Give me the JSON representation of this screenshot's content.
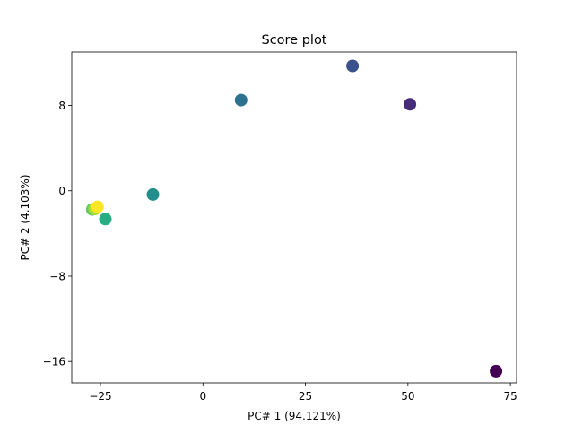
{
  "chart_data": {
    "type": "scatter",
    "title": "Score plot",
    "xlabel": "PC# 1 (94.121%)",
    "ylabel": "PC# 2 (4.103%)",
    "xlim": [
      -32,
      76.5
    ],
    "ylim": [
      -18.0,
      13.0
    ],
    "xticks": [
      -25,
      0,
      25,
      50,
      75
    ],
    "xtick_labels": [
      "−25",
      "0",
      "25",
      "50",
      "75"
    ],
    "yticks": [
      8,
      0,
      -8,
      -16
    ],
    "ytick_labels": [
      "8",
      "0",
      "−8",
      "−16"
    ],
    "grid": false,
    "legend": "none",
    "colormap": "viridis",
    "points": [
      {
        "x": 71.5,
        "y": -16.9,
        "color": "#440154"
      },
      {
        "x": 50.5,
        "y": 8.1,
        "color": "#472c7a"
      },
      {
        "x": 36.5,
        "y": 11.7,
        "color": "#3b518b"
      },
      {
        "x": 9.3,
        "y": 8.5,
        "color": "#2c718e"
      },
      {
        "x": -12.2,
        "y": -0.35,
        "color": "#21908d"
      },
      {
        "x": -23.8,
        "y": -2.65,
        "color": "#27ad81"
      },
      {
        "x": -27.0,
        "y": -1.75,
        "color": "#5cc863"
      },
      {
        "x": -26.4,
        "y": -1.7,
        "color": "#aadc32"
      },
      {
        "x": -25.7,
        "y": -1.5,
        "color": "#fde725"
      }
    ]
  }
}
